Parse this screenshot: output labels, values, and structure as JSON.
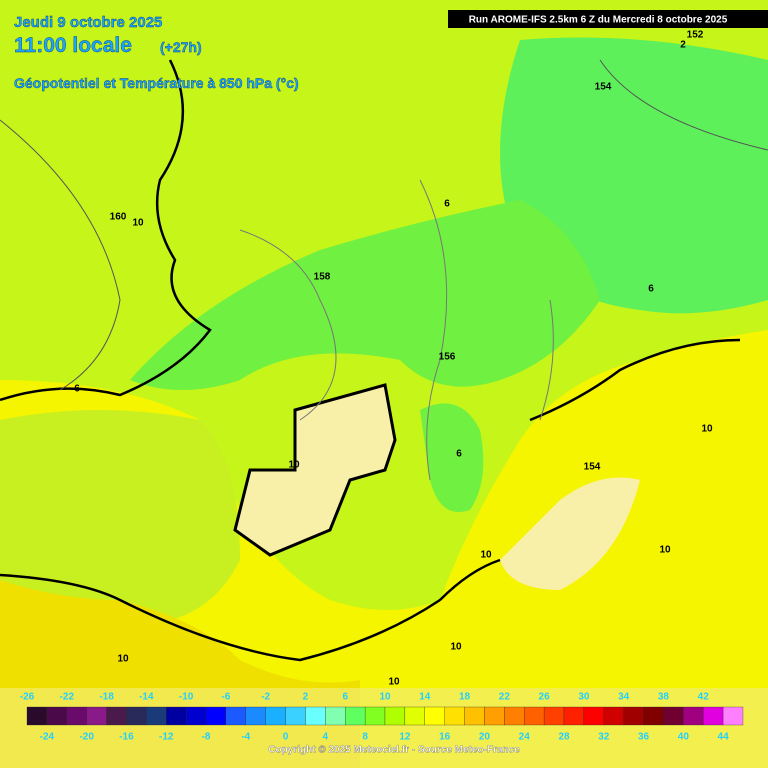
{
  "header": {
    "date": "Jeudi 9 octobre 2025",
    "time": "11:00 locale",
    "lead": "(+27h)",
    "title": "Géopotentiel et Température à 850 hPa (°c)"
  },
  "run": "Run AROME-IFS 2.5km 6 Z du Mercredi 8 octobre 2025",
  "contour_labels": [
    "152",
    "2",
    "154",
    "160",
    "10",
    "6",
    "158",
    "6",
    "156",
    "6",
    "10",
    "10",
    "6",
    "154",
    "10",
    "10",
    "10",
    "10",
    "10"
  ],
  "legend": {
    "top_labels": [
      "-26",
      "-22",
      "-18",
      "-14",
      "-10",
      "-6",
      "-2",
      "2",
      "6",
      "10",
      "14",
      "18",
      "22",
      "26",
      "30",
      "34",
      "38",
      "42"
    ],
    "bottom_labels": [
      "-24",
      "-20",
      "-16",
      "-12",
      "-8",
      "-4",
      "0",
      "4",
      "8",
      "12",
      "16",
      "20",
      "24",
      "28",
      "32",
      "36",
      "40",
      "44"
    ],
    "colors": [
      "#2a0a2a",
      "#4a0a4a",
      "#6a0a6a",
      "#8a1a8a",
      "#4a1a4a",
      "#2a2a5a",
      "#1a3a7a",
      "#0000a0",
      "#0000d0",
      "#0000ff",
      "#1a5aff",
      "#1a8aff",
      "#1ab0ff",
      "#3ad0ff",
      "#6affff",
      "#80ffb0",
      "#60ff60",
      "#80ff20",
      "#b0ff00",
      "#e0ff00",
      "#ffff00",
      "#ffe000",
      "#ffc000",
      "#ffa000",
      "#ff8000",
      "#ff6000",
      "#ff4000",
      "#ff2000",
      "#ff0000",
      "#d00000",
      "#a00000",
      "#800000",
      "#700030",
      "#a00080",
      "#e000e0",
      "#ff80ff"
    ]
  },
  "copyright": "Copyright © 2025 Meteociel.fr - Source Meteo-France"
}
